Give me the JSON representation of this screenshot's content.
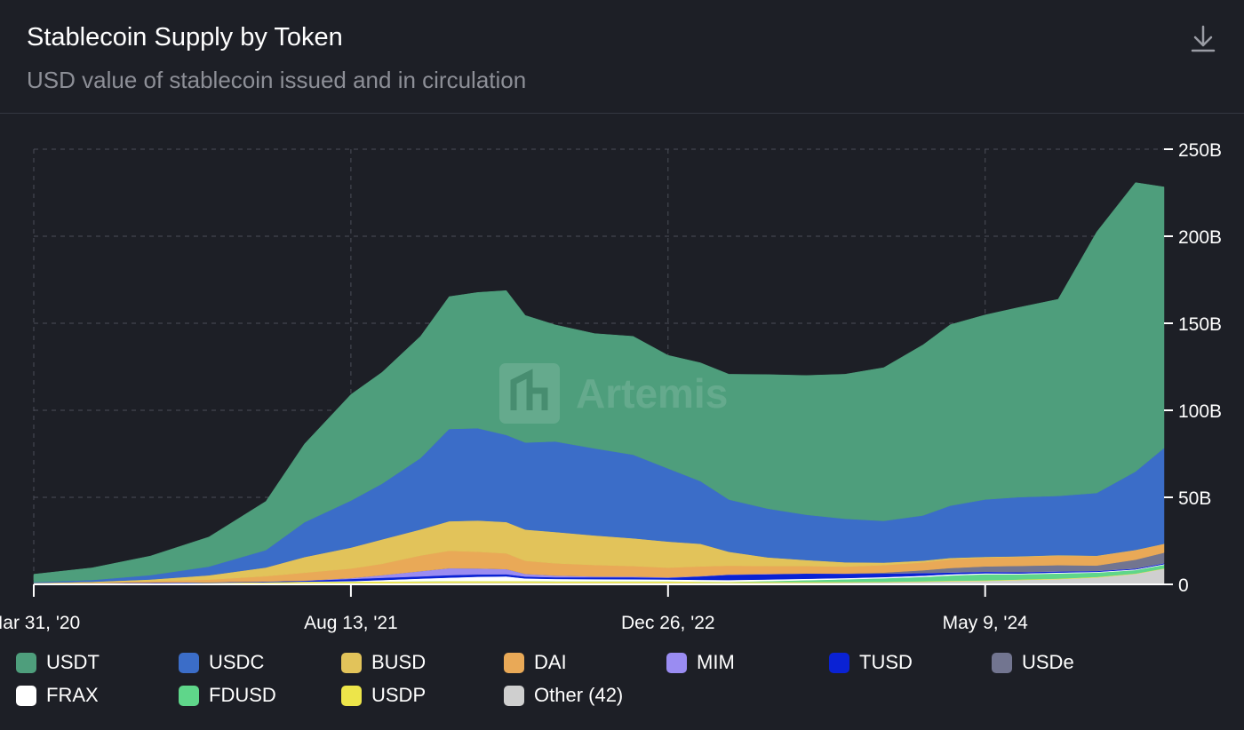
{
  "header": {
    "title": "Stablecoin Supply by Token",
    "subtitle": "USD value of stablecoin issued and in circulation",
    "download_icon": "download-icon"
  },
  "watermark": {
    "text": "Artemis",
    "icon": "artemis-logo-icon"
  },
  "colors": {
    "background": "#1d1f26",
    "grid": "#4b4e58",
    "axis": "#ffffff"
  },
  "chart_data": {
    "type": "area",
    "stacked": true,
    "title": "Stablecoin Supply by Token",
    "subtitle": "USD value of stablecoin issued and in circulation",
    "x_labels": [
      "Mar 31, '20",
      "Aug 13, '21",
      "Dec 26, '22",
      "May 9, '24"
    ],
    "y_ticks": [
      "250B",
      "200B",
      "150B",
      "100B",
      "50B",
      "0"
    ],
    "ylim": [
      0,
      250
    ],
    "y_unit": "B",
    "y_axis_side": "right",
    "grid": true,
    "legend_position": "bottom",
    "x": [
      "2020-03-31",
      "2020-07-01",
      "2020-10-01",
      "2021-01-01",
      "2021-04-01",
      "2021-06-01",
      "2021-08-13",
      "2021-10-01",
      "2021-12-01",
      "2022-01-15",
      "2022-03-01",
      "2022-04-15",
      "2022-05-15",
      "2022-07-01",
      "2022-09-01",
      "2022-11-01",
      "2022-12-26",
      "2023-02-15",
      "2023-04-01",
      "2023-06-01",
      "2023-08-01",
      "2023-10-01",
      "2023-12-01",
      "2024-02-01",
      "2024-03-15",
      "2024-05-09",
      "2024-07-01",
      "2024-09-01",
      "2024-11-01",
      "2025-01-01",
      "2025-02-15"
    ],
    "series": [
      {
        "name": "Other (42)",
        "color": "#cfcfcf",
        "values": [
          0.2,
          0.2,
          0.3,
          0.4,
          0.5,
          0.5,
          0.6,
          0.7,
          0.8,
          0.9,
          0.9,
          0.9,
          0.9,
          0.8,
          0.8,
          0.8,
          0.8,
          0.8,
          0.8,
          0.8,
          0.9,
          1,
          1.2,
          1.5,
          1.8,
          2,
          2.5,
          3,
          4,
          6,
          9
        ]
      },
      {
        "name": "USDP",
        "color": "#ede54a",
        "values": [
          0.1,
          0.2,
          0.3,
          0.5,
          0.8,
          1,
          1,
          1,
          1,
          1,
          1,
          1,
          1,
          1,
          1,
          1,
          1,
          0.8,
          0.7,
          0.6,
          0.5,
          0.4,
          0.3,
          0.3,
          0.3,
          0.3,
          0.3,
          0.3,
          0.3,
          0.2,
          0.2
        ]
      },
      {
        "name": "FDUSD",
        "color": "#5fd68a",
        "values": [
          0,
          0,
          0,
          0,
          0,
          0,
          0,
          0,
          0,
          0,
          0,
          0,
          0,
          0,
          0,
          0,
          0,
          0,
          0,
          0.5,
          1,
          1.5,
          2,
          2.5,
          3,
          3.5,
          3,
          3,
          2.5,
          2,
          2
        ]
      },
      {
        "name": "FRAX",
        "color": "#ffffff",
        "values": [
          0,
          0,
          0,
          0,
          0,
          0.1,
          0.3,
          0.8,
          1.5,
          2,
          2.5,
          2.7,
          1.5,
          1.3,
          1.2,
          1.1,
          1,
          1,
          1,
          0.9,
          0.8,
          0.7,
          0.7,
          0.7,
          0.7,
          0.6,
          0.5,
          0.5,
          0.4,
          0.4,
          0.4
        ]
      },
      {
        "name": "TUSD",
        "color": "#0a22d4",
        "values": [
          0.1,
          0.3,
          0.4,
          0.3,
          0.4,
          0.5,
          1.2,
          1.3,
          1.3,
          1.4,
          1.3,
          1.2,
          1.1,
          1,
          1.1,
          1.2,
          1,
          2,
          3,
          3,
          3,
          2.5,
          2,
          1.5,
          1,
          0.8,
          0.7,
          0.6,
          0.5,
          0.5,
          0.5
        ]
      },
      {
        "name": "MIM",
        "color": "#9a8cf2",
        "values": [
          0,
          0,
          0,
          0,
          0,
          0.1,
          0.5,
          1.5,
          3,
          4,
          3.5,
          3,
          1.5,
          1,
          0.5,
          0.4,
          0.3,
          0.2,
          0.2,
          0.2,
          0.1,
          0.1,
          0.1,
          0.1,
          0.1,
          0.1,
          0.1,
          0.1,
          0.1,
          0.1,
          0.1
        ]
      },
      {
        "name": "USDe",
        "color": "#727590",
        "values": [
          0,
          0,
          0,
          0,
          0,
          0,
          0,
          0,
          0,
          0,
          0,
          0,
          0,
          0,
          0,
          0,
          0,
          0,
          0,
          0,
          0,
          0,
          0.5,
          1.5,
          2.5,
          3,
          3.5,
          3.5,
          3,
          5,
          6
        ]
      },
      {
        "name": "DAI",
        "color": "#e9a957",
        "values": [
          0.1,
          0.3,
          0.8,
          1.5,
          3,
          4.5,
          5.5,
          6.5,
          9,
          10,
          9.5,
          9,
          7.5,
          7,
          6.5,
          6,
          5.5,
          5.5,
          5,
          4.5,
          4.2,
          4,
          4.2,
          4.5,
          5,
          5,
          5.2,
          5.5,
          5.5,
          5.5,
          5
        ]
      },
      {
        "name": "BUSD",
        "color": "#e2c35a",
        "values": [
          0.3,
          0.5,
          1,
          2.5,
          5,
          9,
          12,
          14,
          15,
          17,
          18,
          18,
          18,
          18,
          17,
          16,
          15,
          13,
          8,
          5,
          3.5,
          2.5,
          1.5,
          1,
          0.8,
          0.5,
          0.3,
          0.3,
          0.2,
          0.1,
          0.1
        ]
      },
      {
        "name": "USDC",
        "color": "#3b6dc8",
        "values": [
          0.5,
          1,
          2.5,
          5,
          10,
          20,
          27,
          32,
          41,
          53,
          53,
          50,
          50,
          52,
          50,
          48,
          42,
          36,
          30,
          28,
          26,
          25,
          24,
          26,
          30,
          33,
          34,
          34,
          36,
          45,
          55
        ]
      },
      {
        "name": "USDT",
        "color": "#4e9e7c",
        "values": [
          4.5,
          7,
          11,
          17,
          28,
          45,
          61,
          64,
          70,
          76,
          78,
          83,
          73,
          67,
          66,
          68,
          65,
          68,
          72,
          77,
          80,
          83,
          88,
          98,
          104,
          106,
          109,
          113,
          150,
          166,
          150
        ]
      }
    ],
    "y_tick_values": [
      250,
      200,
      150,
      100,
      50,
      0
    ]
  },
  "legend": [
    {
      "name": "USDT",
      "color": "#4e9e7c"
    },
    {
      "name": "USDC",
      "color": "#3b6dc8"
    },
    {
      "name": "BUSD",
      "color": "#e2c35a"
    },
    {
      "name": "DAI",
      "color": "#e9a957"
    },
    {
      "name": "MIM",
      "color": "#9a8cf2"
    },
    {
      "name": "TUSD",
      "color": "#0a22d4"
    },
    {
      "name": "USDe",
      "color": "#727590"
    },
    {
      "name": "FRAX",
      "color": "#ffffff"
    },
    {
      "name": "FDUSD",
      "color": "#5fd68a"
    },
    {
      "name": "USDP",
      "color": "#ede54a"
    },
    {
      "name": "Other (42)",
      "color": "#cfcfcf"
    }
  ]
}
